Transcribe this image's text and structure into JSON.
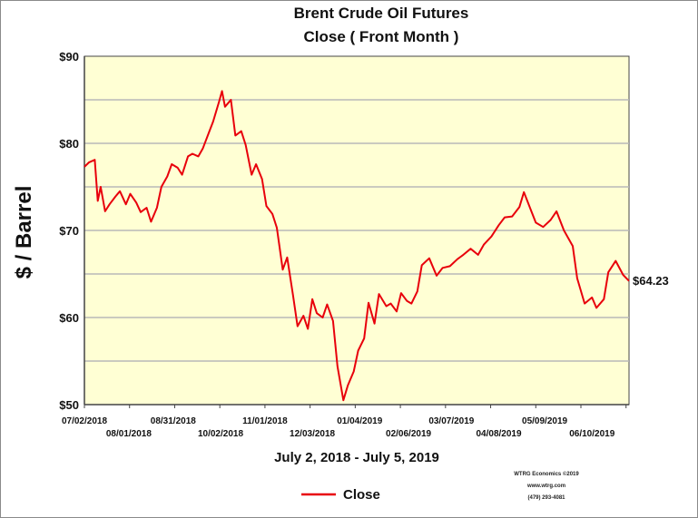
{
  "chart_data": {
    "type": "line",
    "title": "Brent Crude Oil Futures",
    "subtitle": "Close ( Front Month )",
    "ylabel": "$ / Barrel",
    "xlabel": "July 2, 2018 - July 5, 2019",
    "ylim": [
      50,
      90
    ],
    "xlim": [
      "2018-07-02",
      "2019-07-05"
    ],
    "y_ticks": [
      {
        "value": 90,
        "label": "$90"
      },
      {
        "value": 80,
        "label": "$80"
      },
      {
        "value": 70,
        "label": "$70"
      },
      {
        "value": 60,
        "label": "$60"
      },
      {
        "value": 50,
        "label": "$50"
      }
    ],
    "x_ticks": [
      {
        "date": "2018-07-02",
        "label": "07/02/2018",
        "row": 0
      },
      {
        "date": "2018-08-01",
        "label": "08/01/2018",
        "row": 1
      },
      {
        "date": "2018-08-31",
        "label": "08/31/2018",
        "row": 0
      },
      {
        "date": "2018-10-02",
        "label": "10/02/2018",
        "row": 1
      },
      {
        "date": "2018-11-01",
        "label": "11/01/2018",
        "row": 0
      },
      {
        "date": "2018-12-03",
        "label": "12/03/2018",
        "row": 1
      },
      {
        "date": "2019-01-04",
        "label": "01/04/2019",
        "row": 0
      },
      {
        "date": "2019-02-06",
        "label": "02/06/2019",
        "row": 1
      },
      {
        "date": "2019-03-07",
        "label": "03/07/2019",
        "row": 0
      },
      {
        "date": "2019-04-08",
        "label": "04/08/2019",
        "row": 1
      },
      {
        "date": "2019-05-09",
        "label": "05/09/2019",
        "row": 0
      },
      {
        "date": "2019-06-10",
        "label": "06/10/2019",
        "row": 1
      }
    ],
    "grid": true,
    "legend": {
      "position": "bottom-center"
    },
    "last_value_label": "$64.23",
    "credit_lines": [
      "WTRG Economics ©2019",
      "www.wtrg.com",
      "(479) 293-4081"
    ],
    "colors": {
      "line": "#e8000b",
      "plot_bg": "#ffffd4",
      "grid": "#b8b8b8",
      "axis": "#444444"
    },
    "series": [
      {
        "name": "Close",
        "x": [
          "2018-07-02",
          "2018-07-05",
          "2018-07-09",
          "2018-07-11",
          "2018-07-13",
          "2018-07-16",
          "2018-07-19",
          "2018-07-23",
          "2018-07-26",
          "2018-07-30",
          "2018-08-02",
          "2018-08-06",
          "2018-08-09",
          "2018-08-13",
          "2018-08-16",
          "2018-08-20",
          "2018-08-23",
          "2018-08-27",
          "2018-08-30",
          "2018-09-03",
          "2018-09-06",
          "2018-09-10",
          "2018-09-13",
          "2018-09-17",
          "2018-09-20",
          "2018-09-24",
          "2018-09-27",
          "2018-10-01",
          "2018-10-03",
          "2018-10-05",
          "2018-10-09",
          "2018-10-12",
          "2018-10-16",
          "2018-10-19",
          "2018-10-23",
          "2018-10-26",
          "2018-10-30",
          "2018-11-02",
          "2018-11-06",
          "2018-11-09",
          "2018-11-13",
          "2018-11-16",
          "2018-11-20",
          "2018-11-23",
          "2018-11-27",
          "2018-11-30",
          "2018-12-03",
          "2018-12-06",
          "2018-12-10",
          "2018-12-13",
          "2018-12-17",
          "2018-12-20",
          "2018-12-24",
          "2018-12-27",
          "2018-12-31",
          "2019-01-03",
          "2019-01-07",
          "2019-01-10",
          "2019-01-14",
          "2019-01-17",
          "2019-01-22",
          "2019-01-25",
          "2019-01-29",
          "2019-02-01",
          "2019-02-05",
          "2019-02-08",
          "2019-02-12",
          "2019-02-15",
          "2019-02-20",
          "2019-02-25",
          "2019-03-01",
          "2019-03-06",
          "2019-03-11",
          "2019-03-15",
          "2019-03-20",
          "2019-03-25",
          "2019-03-29",
          "2019-04-03",
          "2019-04-08",
          "2019-04-12",
          "2019-04-17",
          "2019-04-22",
          "2019-04-25",
          "2019-04-30",
          "2019-05-03",
          "2019-05-08",
          "2019-05-13",
          "2019-05-17",
          "2019-05-22",
          "2019-05-28",
          "2019-05-31",
          "2019-06-05",
          "2019-06-10",
          "2019-06-13",
          "2019-06-18",
          "2019-06-21",
          "2019-06-26",
          "2019-07-01",
          "2019-07-05"
        ],
        "y": [
          77.3,
          77.8,
          78.1,
          73.4,
          75.0,
          72.2,
          73.0,
          73.9,
          74.5,
          73.0,
          74.2,
          73.2,
          72.1,
          72.6,
          71.0,
          72.6,
          75.0,
          76.2,
          77.6,
          77.2,
          76.4,
          78.5,
          78.8,
          78.5,
          79.4,
          81.2,
          82.5,
          84.8,
          86.0,
          84.2,
          85.0,
          80.9,
          81.4,
          79.8,
          76.4,
          77.6,
          75.9,
          72.8,
          71.9,
          70.3,
          65.5,
          66.9,
          62.5,
          59.0,
          60.2,
          58.7,
          62.1,
          60.5,
          60.0,
          61.5,
          59.6,
          54.4,
          50.5,
          52.2,
          53.8,
          56.2,
          57.6,
          61.7,
          59.3,
          62.7,
          61.3,
          61.6,
          60.7,
          62.8,
          61.9,
          61.6,
          63.0,
          66.0,
          66.8,
          64.8,
          65.7,
          65.9,
          66.7,
          67.2,
          67.9,
          67.2,
          68.4,
          69.3,
          70.6,
          71.5,
          71.6,
          72.7,
          74.4,
          72.2,
          70.9,
          70.4,
          71.2,
          72.2,
          70.0,
          68.2,
          64.5,
          61.6,
          62.3,
          61.1,
          62.1,
          65.2,
          66.5,
          64.9,
          64.2
        ]
      }
    ]
  }
}
